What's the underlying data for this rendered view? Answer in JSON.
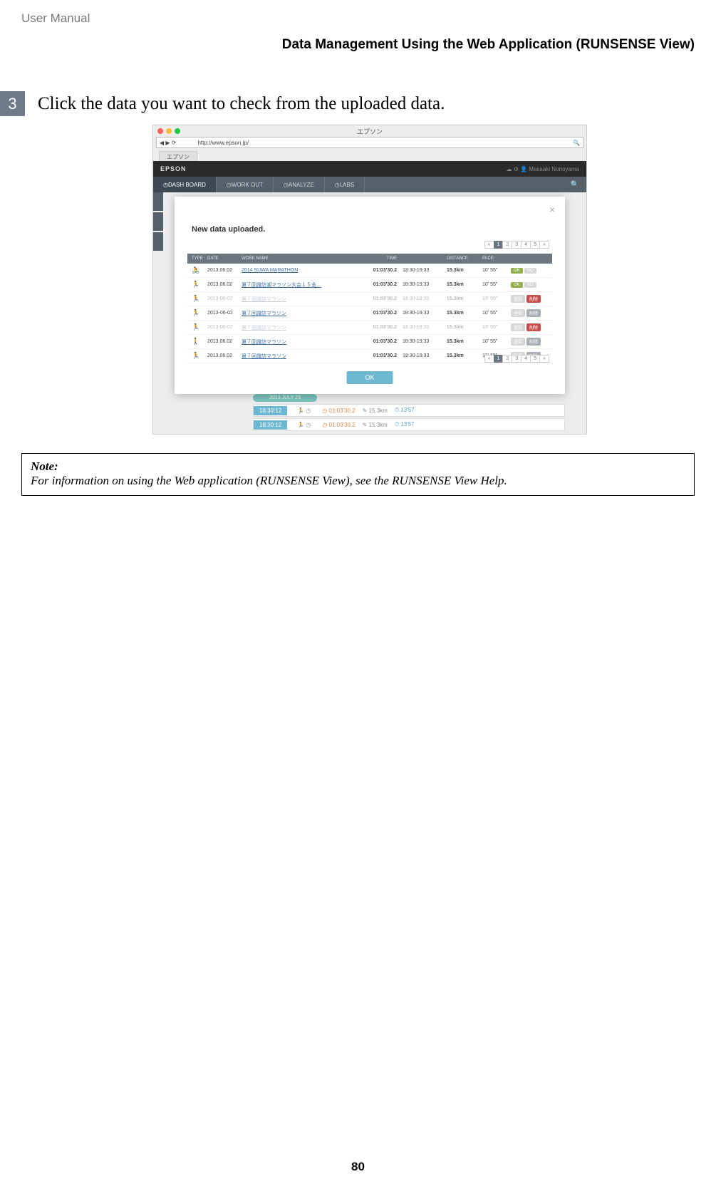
{
  "doc_header": "User Manual",
  "section_title": "Data Management Using the Web Application (RUNSENSE View)",
  "step": {
    "num": "3",
    "text": "Click the data you want to check from the uploaded data."
  },
  "note": {
    "label": "Note:",
    "body": "For information on using the Web application (RUNSENSE View), see the RUNSENSE View Help."
  },
  "page_number": "80",
  "shot": {
    "window_title": "エプソン",
    "url": "http://www.epson.jp/",
    "tab": "エプソン",
    "brand": "EPSON",
    "user": "Masaaki Nonoyama",
    "nav": [
      "DASH BOARD",
      "WORK OUT",
      "ANALYZE",
      "LABS"
    ],
    "modal_title": "New data uploaded.",
    "pager": [
      "«",
      "1",
      "2",
      "3",
      "4",
      "5",
      "»"
    ],
    "pager_current": "1",
    "thead": {
      "type": "TYPE",
      "date": "DATE",
      "name": "WORK NAME",
      "time": "TIME",
      "dist": "DISTANCE",
      "pace": "PACE"
    },
    "rows": [
      {
        "dim": false,
        "icon": "🚴",
        "date": "2013.06.02",
        "name": "2014 SUWA MARATHON",
        "time": "01:03'30.2",
        "range": "18:30-19:33",
        "dist": "15.3km",
        "pace": "10' 55\"",
        "b1": "OK",
        "b2": "NO",
        "bt": "okno"
      },
      {
        "dim": false,
        "icon": "🏃",
        "date": "2013.06.02",
        "name": "第７回諏訪湖マラソン大会１５支…",
        "time": "01:03'30.2",
        "range": "18:30-19:33",
        "dist": "15.3km",
        "pace": "10' 55\"",
        "b1": "OK",
        "b2": "NO",
        "bt": "okno"
      },
      {
        "dim": true,
        "icon": "🏃",
        "date": "2013-06-02",
        "name": "第７回諏訪マラソン",
        "time": "01:03'30.2",
        "range": "18:30-19:33",
        "dist": "15.3km",
        "pace": "10' 55\"",
        "b1": "登録",
        "b2": "削除",
        "bt": "editdel"
      },
      {
        "dim": false,
        "icon": "🏃",
        "date": "2013-06-02",
        "name": "第７回諏訪マラソン",
        "time": "01:03'30.2",
        "range": "18:30-19:33",
        "dist": "15.3km",
        "pace": "10' 55\"",
        "b1": "登録",
        "b2": "削除",
        "bt": "editg"
      },
      {
        "dim": true,
        "icon": "🏃",
        "date": "2013-06-02",
        "name": "第７回諏訪マラソン",
        "time": "01:03'30.2",
        "range": "18:30-19:33",
        "dist": "15.3km",
        "pace": "10' 55\"",
        "b1": "登録",
        "b2": "削除",
        "bt": "editdel"
      },
      {
        "dim": false,
        "icon": "🚶",
        "date": "2013.06.02",
        "name": "第７回諏訪マラソン",
        "time": "01:03'30.2",
        "range": "18:30-19:33",
        "dist": "15.3km",
        "pace": "10' 55\"",
        "b1": "登録",
        "b2": "削除",
        "bt": "editg"
      },
      {
        "dim": false,
        "icon": "🏃",
        "date": "2013.06.02",
        "name": "第７回諏訪マラソン",
        "time": "01:03'30.2",
        "range": "18:30-19:33",
        "dist": "15.3km",
        "pace": "10' 55\"",
        "b1": "登録",
        "b2": "削除",
        "bt": "editg"
      }
    ],
    "ok_button": "OK",
    "bg_date": "2013 JULY 23",
    "bg_chip": "18:30:12",
    "bg_time": "01:03'30.2",
    "bg_dist": "15.3km",
    "bg_pace": "13'57"
  }
}
